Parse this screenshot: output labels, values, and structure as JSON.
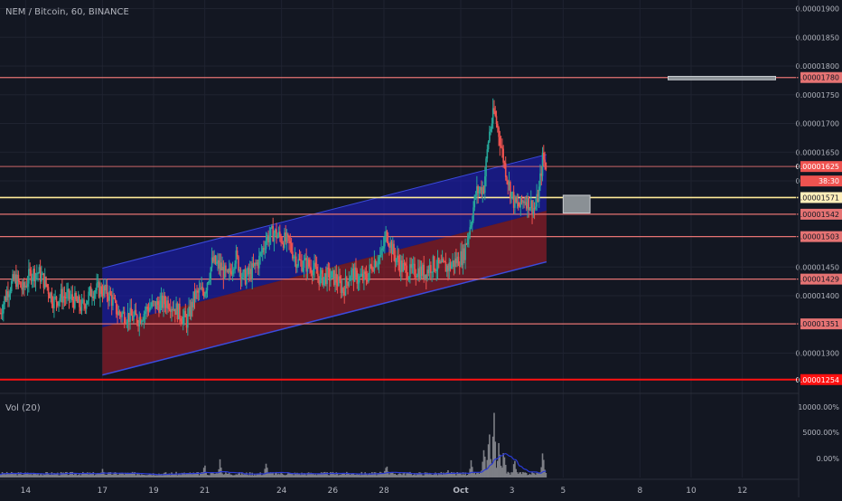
{
  "header": {
    "symbol": "NEM / Bitcoin, 60, BINANCE"
  },
  "volume_pane": {
    "label": "Vol (20)"
  },
  "countdown": "38:30",
  "channel_note": "",
  "colors": {
    "background": "#131722",
    "grid": "#1f2330",
    "up": "#26a69a",
    "down": "#ef5350",
    "channel_top": "#1e1ecc",
    "channel_bottom": "#b01e2a",
    "level_line": "#e57373",
    "key_level": "#ffeb99",
    "strong_level": "#ff1111",
    "volume": "#7d7f86",
    "volume_ma": "#2a3ad6"
  },
  "chart_data": {
    "type": "candlestick",
    "title": "NEM / Bitcoin, 60, BINANCE",
    "price_axis": {
      "ylim": [
        1.23e-05,
        1.915e-05
      ],
      "ticks": [
        "0.00001900",
        "0.00001850",
        "0.00001800",
        "0.00001750",
        "0.00001700",
        "0.00001650",
        "0.00001600",
        "0.00001450",
        "0.00001400",
        "0.00001300"
      ],
      "highlighted_labels": [
        {
          "label": "0.00001780",
          "style": "level"
        },
        {
          "label": "0.00001625",
          "style": "current"
        },
        {
          "label": "0.00001571",
          "style": "key"
        },
        {
          "label": "0.00001542",
          "style": "level"
        },
        {
          "label": "0.00001503",
          "style": "level"
        },
        {
          "label": "0.00001429",
          "style": "level"
        },
        {
          "label": "0.00001351",
          "style": "level"
        },
        {
          "label": "0.00001254",
          "style": "strong"
        }
      ]
    },
    "time_axis": {
      "labels": [
        "14",
        "17",
        "19",
        "21",
        "24",
        "26",
        "28",
        "Oct",
        "3",
        "5",
        "8",
        "10",
        "12"
      ],
      "label_positions_days": [
        14,
        17,
        19,
        21,
        24,
        26,
        28,
        31,
        33,
        35,
        38,
        40,
        42
      ]
    },
    "horizontal_levels": [
      1.78e-05,
      1.625e-05,
      1.571e-05,
      1.542e-05,
      1.503e-05,
      1.429e-05,
      1.351e-05,
      1.254e-05
    ],
    "channel": {
      "start_day": 17.0,
      "end_day": 34.35,
      "upper_start": 1.448e-05,
      "upper_end": 1.646e-05,
      "mid_start": 1.345e-05,
      "mid_end": 1.548e-05,
      "lower_start": 1.262e-05,
      "lower_end": 1.459e-05
    },
    "boxes": [
      {
        "day_start": 35.0,
        "day_end": 36.05,
        "top": 1.575e-05,
        "bottom": 1.544e-05
      },
      {
        "day_start": 39.1,
        "day_end": 43.3,
        "top": 1.782e-05,
        "bottom": 1.776e-05
      }
    ],
    "price_path": [
      [
        13.0,
        1.37e-05
      ],
      [
        13.3,
        1.41e-05
      ],
      [
        13.6,
        1.43e-05
      ],
      [
        13.9,
        1.41e-05
      ],
      [
        14.2,
        1.44e-05
      ],
      [
        14.5,
        1.44e-05
      ],
      [
        14.8,
        1.42e-05
      ],
      [
        15.1,
        1.39e-05
      ],
      [
        15.4,
        1.4e-05
      ],
      [
        15.8,
        1.395e-05
      ],
      [
        16.2,
        1.38e-05
      ],
      [
        16.6,
        1.41e-05
      ],
      [
        17.0,
        1.41e-05
      ],
      [
        17.3,
        1.4e-05
      ],
      [
        17.6,
        1.37e-05
      ],
      [
        18.0,
        1.365e-05
      ],
      [
        18.4,
        1.36e-05
      ],
      [
        18.8,
        1.38e-05
      ],
      [
        19.2,
        1.385e-05
      ],
      [
        19.6,
        1.39e-05
      ],
      [
        20.0,
        1.37e-05
      ],
      [
        20.3,
        1.355e-05
      ],
      [
        20.6,
        1.4e-05
      ],
      [
        21.0,
        1.41e-05
      ],
      [
        21.3,
        1.46e-05
      ],
      [
        21.6,
        1.45e-05
      ],
      [
        21.9,
        1.43e-05
      ],
      [
        22.2,
        1.47e-05
      ],
      [
        22.5,
        1.43e-05
      ],
      [
        22.8,
        1.44e-05
      ],
      [
        23.1,
        1.46e-05
      ],
      [
        23.4,
        1.5e-05
      ],
      [
        23.7,
        1.51e-05
      ],
      [
        24.0,
        1.5e-05
      ],
      [
        24.3,
        1.49e-05
      ],
      [
        24.6,
        1.46e-05
      ],
      [
        24.9,
        1.455e-05
      ],
      [
        25.2,
        1.45e-05
      ],
      [
        25.5,
        1.43e-05
      ],
      [
        25.8,
        1.435e-05
      ],
      [
        26.1,
        1.43e-05
      ],
      [
        26.4,
        1.41e-05
      ],
      [
        26.7,
        1.44e-05
      ],
      [
        27.0,
        1.43e-05
      ],
      [
        27.3,
        1.43e-05
      ],
      [
        27.6,
        1.46e-05
      ],
      [
        27.9,
        1.47e-05
      ],
      [
        28.1,
        1.51e-05
      ],
      [
        28.4,
        1.47e-05
      ],
      [
        28.7,
        1.45e-05
      ],
      [
        29.0,
        1.44e-05
      ],
      [
        29.3,
        1.445e-05
      ],
      [
        29.6,
        1.44e-05
      ],
      [
        29.9,
        1.455e-05
      ],
      [
        30.2,
        1.45e-05
      ],
      [
        30.5,
        1.45e-05
      ],
      [
        30.8,
        1.46e-05
      ],
      [
        31.1,
        1.47e-05
      ],
      [
        31.4,
        1.53e-05
      ],
      [
        31.6,
        1.58e-05
      ],
      [
        31.9,
        1.59e-05
      ],
      [
        32.1,
        1.68e-05
      ],
      [
        32.3,
        1.72e-05
      ],
      [
        32.5,
        1.68e-05
      ],
      [
        32.7,
        1.63e-05
      ],
      [
        32.9,
        1.59e-05
      ],
      [
        33.1,
        1.56e-05
      ],
      [
        33.3,
        1.555e-05
      ],
      [
        33.5,
        1.57e-05
      ],
      [
        33.7,
        1.56e-05
      ],
      [
        33.9,
        1.55e-05
      ],
      [
        34.05,
        1.58e-05
      ],
      [
        34.2,
        1.64e-05
      ],
      [
        34.35,
        1.625e-05
      ]
    ],
    "volume": {
      "ylim": [
        0,
        10000
      ],
      "ticks": [
        "10000.00%",
        "5000.00%",
        "0.00%"
      ],
      "spikes": [
        {
          "day": 17.0,
          "value": 1500
        },
        {
          "day": 21.0,
          "value": 2200
        },
        {
          "day": 21.6,
          "value": 3200
        },
        {
          "day": 23.4,
          "value": 2400
        },
        {
          "day": 28.1,
          "value": 2800
        },
        {
          "day": 30.5,
          "value": 1200
        },
        {
          "day": 31.4,
          "value": 2600
        },
        {
          "day": 31.9,
          "value": 4800
        },
        {
          "day": 32.1,
          "value": 8800
        },
        {
          "day": 32.3,
          "value": 10000
        },
        {
          "day": 32.5,
          "value": 6000
        },
        {
          "day": 32.7,
          "value": 5200
        },
        {
          "day": 33.1,
          "value": 3000
        },
        {
          "day": 34.2,
          "value": 4000
        }
      ]
    }
  }
}
